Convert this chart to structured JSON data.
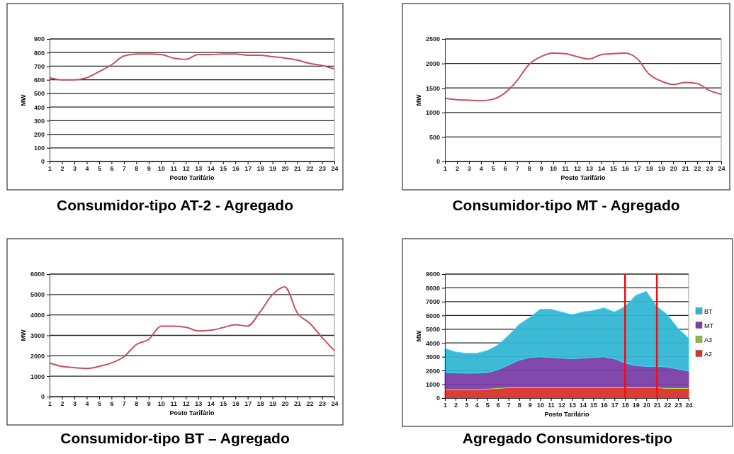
{
  "chart_data": [
    {
      "type": "line",
      "title": "Consumidor-tipo AT-2 - Agregado",
      "xlabel": "Posto Tarifário",
      "ylabel": "MW",
      "x": [
        1,
        2,
        3,
        4,
        5,
        6,
        7,
        8,
        9,
        10,
        11,
        12,
        13,
        14,
        15,
        16,
        17,
        18,
        19,
        20,
        21,
        22,
        23,
        24
      ],
      "xlim": [
        1,
        24
      ],
      "xticks": [
        1,
        2,
        3,
        4,
        5,
        6,
        7,
        8,
        9,
        10,
        11,
        12,
        13,
        14,
        15,
        16,
        17,
        18,
        19,
        20,
        21,
        22,
        23,
        24
      ],
      "ylim": [
        0,
        900
      ],
      "yticks": [
        0,
        100,
        200,
        300,
        400,
        500,
        600,
        700,
        800,
        900
      ],
      "grid": "y",
      "legend": false,
      "marker": "none",
      "line_style": "solid",
      "series": [
        {
          "color": "#c8505a",
          "values": [
            615,
            600,
            600,
            615,
            660,
            710,
            775,
            790,
            790,
            785,
            760,
            750,
            785,
            785,
            790,
            790,
            780,
            780,
            770,
            760,
            745,
            720,
            705,
            680
          ]
        }
      ]
    },
    {
      "type": "line",
      "title": "Consumidor-tipo MT - Agregado",
      "xlabel": "Posto Tarifário",
      "ylabel": "MW",
      "x": [
        1,
        2,
        3,
        4,
        5,
        6,
        7,
        8,
        9,
        10,
        11,
        12,
        13,
        14,
        15,
        16,
        17,
        18,
        19,
        20,
        21,
        22,
        23,
        24
      ],
      "xlim": [
        1,
        24
      ],
      "xticks": [
        1,
        2,
        3,
        4,
        5,
        6,
        7,
        8,
        9,
        10,
        11,
        12,
        13,
        14,
        15,
        16,
        17,
        18,
        19,
        20,
        21,
        22,
        23,
        24
      ],
      "ylim": [
        0,
        2500
      ],
      "yticks": [
        0,
        500,
        1000,
        1500,
        2000,
        2500
      ],
      "grid": "y",
      "legend": false,
      "marker": "none",
      "line_style": "solid",
      "series": [
        {
          "color": "#c8505a",
          "values": [
            1290,
            1260,
            1250,
            1240,
            1270,
            1400,
            1650,
            1980,
            2140,
            2210,
            2200,
            2140,
            2090,
            2180,
            2200,
            2210,
            2100,
            1780,
            1640,
            1570,
            1610,
            1590,
            1450,
            1370
          ]
        }
      ]
    },
    {
      "type": "line",
      "title": "Consumidor-tipo BT – Agregado",
      "xlabel": "Posto Tarifário",
      "ylabel": "MW",
      "x": [
        1,
        2,
        3,
        4,
        5,
        6,
        7,
        8,
        9,
        10,
        11,
        12,
        13,
        14,
        15,
        16,
        17,
        18,
        19,
        20,
        21,
        22,
        23,
        24
      ],
      "xlim": [
        1,
        24
      ],
      "xticks": [
        1,
        2,
        3,
        4,
        5,
        6,
        7,
        8,
        9,
        10,
        11,
        12,
        13,
        14,
        15,
        16,
        17,
        18,
        19,
        20,
        21,
        22,
        23,
        24
      ],
      "ylim": [
        0,
        6000
      ],
      "yticks": [
        0,
        1000,
        2000,
        3000,
        4000,
        5000,
        6000
      ],
      "grid": "y",
      "legend": false,
      "marker": "none",
      "line_style": "solid",
      "series": [
        {
          "color": "#c8505a",
          "values": [
            1650,
            1480,
            1420,
            1380,
            1480,
            1650,
            1950,
            2550,
            2800,
            3450,
            3450,
            3400,
            3220,
            3250,
            3380,
            3520,
            3460,
            4150,
            5000,
            5380,
            4100,
            3600,
            2900,
            2250
          ]
        }
      ]
    },
    {
      "type": "area",
      "title": "Agregado Consumidores-tipo",
      "xlabel": "Posto Tarifário",
      "ylabel": "MW",
      "x": [
        1,
        2,
        3,
        4,
        5,
        6,
        7,
        8,
        9,
        10,
        11,
        12,
        13,
        14,
        15,
        16,
        17,
        18,
        19,
        20,
        21,
        22,
        23,
        24
      ],
      "xlim": [
        1,
        24
      ],
      "xticks": [
        1,
        2,
        3,
        4,
        5,
        6,
        7,
        8,
        9,
        10,
        11,
        12,
        13,
        14,
        15,
        16,
        17,
        18,
        19,
        20,
        21,
        22,
        23,
        24
      ],
      "ylim": [
        0,
        9000
      ],
      "yticks": [
        0,
        1000,
        2000,
        3000,
        4000,
        5000,
        6000,
        7000,
        8000,
        9000
      ],
      "grid": "y",
      "legend": "right",
      "stacked": true,
      "ref_lines": [
        {
          "axis": "x",
          "value": 18,
          "color": "#ee1111"
        },
        {
          "axis": "x",
          "value": 21,
          "color": "#ee1111"
        }
      ],
      "series": [
        {
          "name": "A2",
          "color": "#d9322b",
          "values": [
            600,
            600,
            600,
            600,
            650,
            700,
            750,
            750,
            750,
            750,
            750,
            750,
            750,
            750,
            750,
            750,
            750,
            750,
            750,
            750,
            750,
            700,
            700,
            700
          ]
        },
        {
          "name": "A3",
          "color": "#8fbc3a",
          "values": [
            50,
            50,
            50,
            50,
            50,
            50,
            50,
            50,
            50,
            50,
            50,
            50,
            50,
            50,
            50,
            50,
            50,
            50,
            50,
            50,
            50,
            50,
            50,
            50
          ]
        },
        {
          "name": "MT",
          "color": "#7a3fa6",
          "values": [
            1200,
            1180,
            1160,
            1160,
            1150,
            1300,
            1600,
            1950,
            2150,
            2200,
            2150,
            2100,
            2050,
            2100,
            2150,
            2200,
            2050,
            1750,
            1550,
            1500,
            1500,
            1500,
            1350,
            1200
          ]
        },
        {
          "name": "BT",
          "color": "#31b6d4",
          "values": [
            1750,
            1520,
            1440,
            1440,
            1600,
            1800,
            2150,
            2600,
            2900,
            3450,
            3500,
            3350,
            3200,
            3350,
            3400,
            3550,
            3400,
            4100,
            5100,
            5450,
            4350,
            3800,
            2950,
            2400
          ]
        }
      ]
    }
  ]
}
